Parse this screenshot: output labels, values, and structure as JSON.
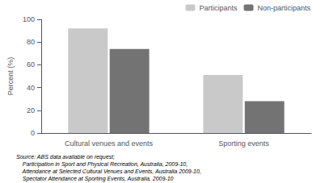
{
  "chart_data": {
    "type": "bar",
    "categories": [
      "Cultural venues and events",
      "Sporting events"
    ],
    "series": [
      {
        "name": "Participants",
        "color": "#c9c9c9",
        "values": [
          92,
          51
        ]
      },
      {
        "name": "Non-participants",
        "color": "#737373",
        "values": [
          74,
          28
        ]
      }
    ],
    "ylabel": "Percent (%)",
    "ylim": [
      0,
      100
    ],
    "yticks": [
      0,
      20,
      40,
      60,
      80,
      100
    ],
    "grid": false,
    "legend": "upper right",
    "annotations": [
      "Source: ABS data available on request;",
      "    Participation in Sport and Physical Recreation, Australia, 2009-10,",
      "    Attendance at Selected Cultural Venues and Events, Australia 2009-10,",
      "    Spectator Attendance at Sporting Events, Australia, 2009-10"
    ]
  }
}
